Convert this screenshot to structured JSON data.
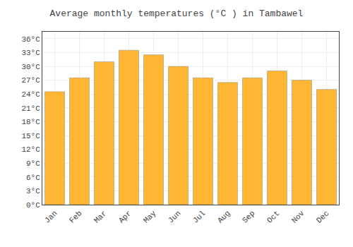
{
  "chart_data": {
    "type": "bar",
    "title": "Average monthly temperatures (°C ) in Tambawel",
    "categories": [
      "Jan",
      "Feb",
      "Mar",
      "Apr",
      "May",
      "Jun",
      "Jul",
      "Aug",
      "Sep",
      "Oct",
      "Nov",
      "Dec"
    ],
    "values": [
      24.5,
      27.5,
      31.0,
      33.5,
      32.5,
      30.0,
      27.5,
      26.5,
      27.5,
      29.0,
      27.0,
      25.0
    ],
    "color": "#FFB733",
    "ylim": [
      0,
      37.5
    ],
    "yticks": [
      {
        "value": 0,
        "label": "0°C"
      },
      {
        "value": 3,
        "label": "3°C"
      },
      {
        "value": 6,
        "label": "6°C"
      },
      {
        "value": 9,
        "label": "9°C"
      },
      {
        "value": 12,
        "label": "12°C"
      },
      {
        "value": 15,
        "label": "15°C"
      },
      {
        "value": 18,
        "label": "18°C"
      },
      {
        "value": 21,
        "label": "21°C"
      },
      {
        "value": 24,
        "label": "24°C"
      },
      {
        "value": 27,
        "label": "27°C"
      },
      {
        "value": 30,
        "label": "30°C"
      },
      {
        "value": 33,
        "label": "33°C"
      },
      {
        "value": 36,
        "label": "36°C"
      }
    ],
    "grid": true
  }
}
